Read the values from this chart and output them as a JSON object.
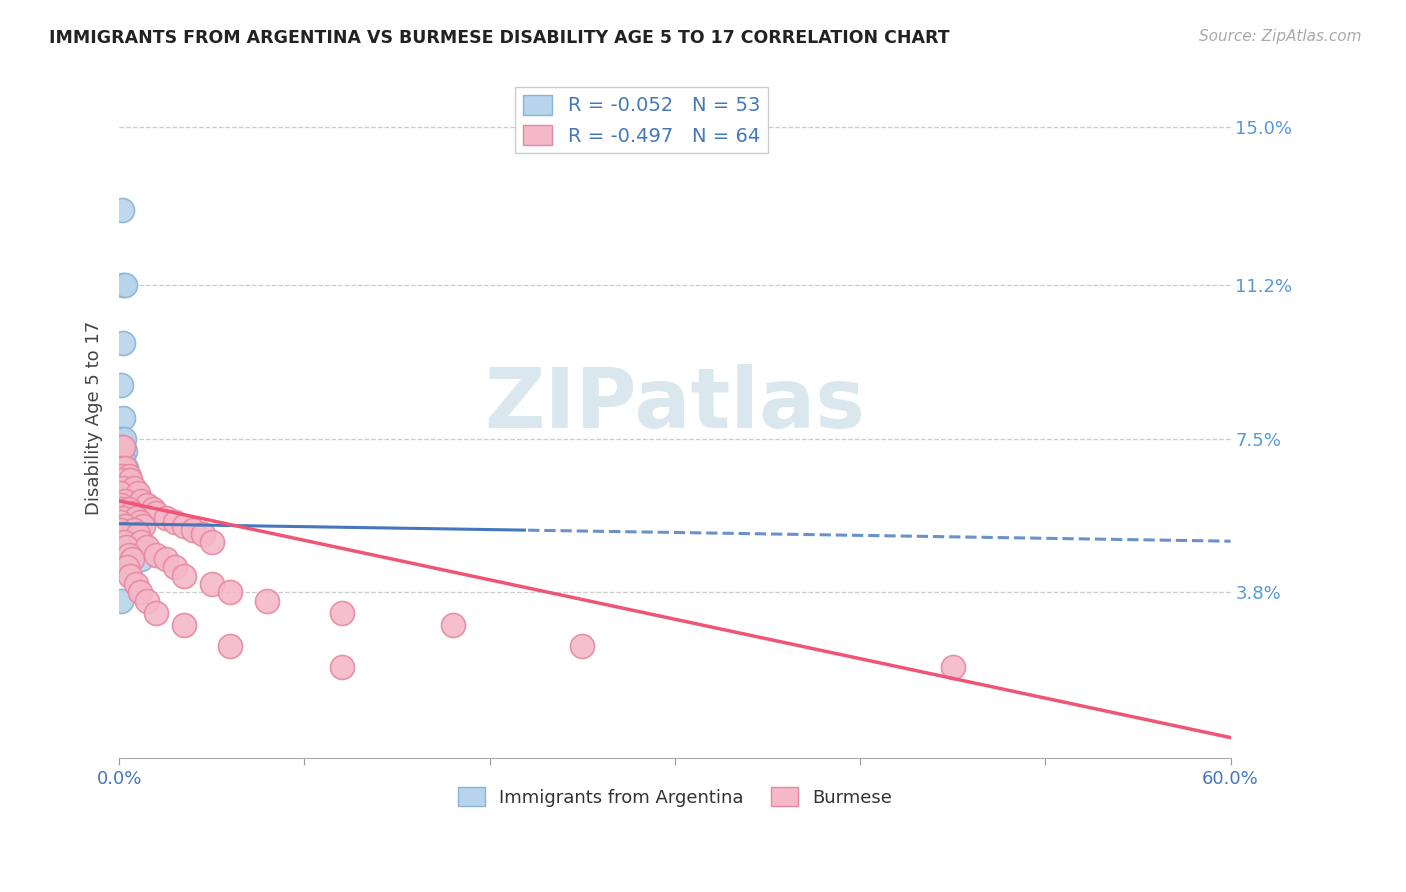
{
  "title": "IMMIGRANTS FROM ARGENTINA VS BURMESE DISABILITY AGE 5 TO 17 CORRELATION CHART",
  "source": "Source: ZipAtlas.com",
  "ylabel": "Disability Age 5 to 17",
  "ytick_labels": [
    "3.8%",
    "7.5%",
    "11.2%",
    "15.0%"
  ],
  "ytick_values": [
    0.038,
    0.075,
    0.112,
    0.15
  ],
  "xlim": [
    0.0,
    0.6
  ],
  "ylim": [
    -0.002,
    0.162
  ],
  "legend_R1": "-0.052",
  "legend_N1": "53",
  "legend_R2": "-0.497",
  "legend_N2": "64",
  "legend_label1": "Immigrants from Argentina",
  "legend_label2": "Burmese",
  "argentina_face": "#b8d4ed",
  "argentina_edge": "#88b4d8",
  "burmese_face": "#f4b8c8",
  "burmese_edge": "#e888a0",
  "arg_trend_color": "#4477bb",
  "bur_trend_color": "#ee5577",
  "watermark_color": "#ccdde8",
  "right_tick_color": "#5599dd",
  "arg_points": [
    [
      0.0015,
      0.13
    ],
    [
      0.002,
      0.112
    ],
    [
      0.003,
      0.112
    ],
    [
      0.0018,
      0.098
    ],
    [
      0.0012,
      0.088
    ],
    [
      0.002,
      0.08
    ],
    [
      0.001,
      0.075
    ],
    [
      0.0025,
      0.075
    ],
    [
      0.0015,
      0.072
    ],
    [
      0.003,
      0.072
    ],
    [
      0.002,
      0.07
    ],
    [
      0.0008,
      0.068
    ],
    [
      0.0035,
      0.068
    ],
    [
      0.0012,
      0.065
    ],
    [
      0.004,
      0.065
    ],
    [
      0.0018,
      0.063
    ],
    [
      0.005,
      0.063
    ],
    [
      0.001,
      0.062
    ],
    [
      0.0025,
      0.062
    ],
    [
      0.003,
      0.06
    ],
    [
      0.006,
      0.06
    ],
    [
      0.0005,
      0.058
    ],
    [
      0.0015,
      0.058
    ],
    [
      0.0045,
      0.058
    ],
    [
      0.002,
      0.056
    ],
    [
      0.0055,
      0.056
    ],
    [
      0.0008,
      0.055
    ],
    [
      0.0035,
      0.055
    ],
    [
      0.001,
      0.054
    ],
    [
      0.004,
      0.054
    ],
    [
      0.008,
      0.054
    ],
    [
      0.0005,
      0.053
    ],
    [
      0.0025,
      0.053
    ],
    [
      0.006,
      0.053
    ],
    [
      0.0012,
      0.052
    ],
    [
      0.0045,
      0.052
    ],
    [
      0.009,
      0.052
    ],
    [
      0.0005,
      0.051
    ],
    [
      0.002,
      0.051
    ],
    [
      0.0055,
      0.051
    ],
    [
      0.01,
      0.051
    ],
    [
      0.0008,
      0.05
    ],
    [
      0.003,
      0.05
    ],
    [
      0.007,
      0.05
    ],
    [
      0.0003,
      0.049
    ],
    [
      0.0018,
      0.049
    ],
    [
      0.005,
      0.049
    ],
    [
      0.0005,
      0.048
    ],
    [
      0.0025,
      0.048
    ],
    [
      0.001,
      0.047
    ],
    [
      0.004,
      0.047
    ],
    [
      0.012,
      0.046
    ],
    [
      0.0008,
      0.036
    ]
  ],
  "bur_points": [
    [
      0.001,
      0.073
    ],
    [
      0.002,
      0.073
    ],
    [
      0.0008,
      0.068
    ],
    [
      0.003,
      0.068
    ],
    [
      0.0015,
      0.066
    ],
    [
      0.005,
      0.066
    ],
    [
      0.001,
      0.065
    ],
    [
      0.006,
      0.065
    ],
    [
      0.002,
      0.063
    ],
    [
      0.008,
      0.063
    ],
    [
      0.0005,
      0.062
    ],
    [
      0.01,
      0.062
    ],
    [
      0.003,
      0.06
    ],
    [
      0.012,
      0.06
    ],
    [
      0.0008,
      0.059
    ],
    [
      0.015,
      0.059
    ],
    [
      0.0015,
      0.058
    ],
    [
      0.005,
      0.058
    ],
    [
      0.018,
      0.058
    ],
    [
      0.001,
      0.057
    ],
    [
      0.007,
      0.057
    ],
    [
      0.02,
      0.057
    ],
    [
      0.002,
      0.056
    ],
    [
      0.009,
      0.056
    ],
    [
      0.025,
      0.056
    ],
    [
      0.0005,
      0.055
    ],
    [
      0.011,
      0.055
    ],
    [
      0.03,
      0.055
    ],
    [
      0.003,
      0.054
    ],
    [
      0.013,
      0.054
    ],
    [
      0.035,
      0.054
    ],
    [
      0.0012,
      0.053
    ],
    [
      0.008,
      0.053
    ],
    [
      0.04,
      0.053
    ],
    [
      0.0018,
      0.052
    ],
    [
      0.01,
      0.052
    ],
    [
      0.045,
      0.052
    ],
    [
      0.0025,
      0.05
    ],
    [
      0.012,
      0.05
    ],
    [
      0.05,
      0.05
    ],
    [
      0.0035,
      0.049
    ],
    [
      0.015,
      0.049
    ],
    [
      0.005,
      0.047
    ],
    [
      0.02,
      0.047
    ],
    [
      0.007,
      0.046
    ],
    [
      0.025,
      0.046
    ],
    [
      0.004,
      0.044
    ],
    [
      0.03,
      0.044
    ],
    [
      0.006,
      0.042
    ],
    [
      0.035,
      0.042
    ],
    [
      0.009,
      0.04
    ],
    [
      0.05,
      0.04
    ],
    [
      0.011,
      0.038
    ],
    [
      0.06,
      0.038
    ],
    [
      0.015,
      0.036
    ],
    [
      0.08,
      0.036
    ],
    [
      0.02,
      0.033
    ],
    [
      0.12,
      0.033
    ],
    [
      0.035,
      0.03
    ],
    [
      0.18,
      0.03
    ],
    [
      0.06,
      0.025
    ],
    [
      0.25,
      0.025
    ],
    [
      0.12,
      0.02
    ],
    [
      0.45,
      0.02
    ]
  ]
}
